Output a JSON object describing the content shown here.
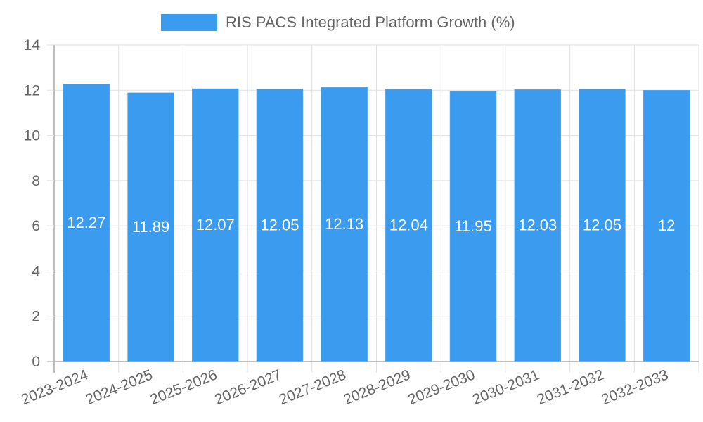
{
  "legend": {
    "label": "RIS PACS Integrated Platform Growth (%)",
    "color": "#3a9bef"
  },
  "chart_data": {
    "type": "bar",
    "title": "",
    "xlabel": "",
    "ylabel": "",
    "categories": [
      "2023-2024",
      "2024-2025",
      "2025-2026",
      "2026-2027",
      "2027-2028",
      "2028-2029",
      "2029-2030",
      "2030-2031",
      "2031-2032",
      "2032-2033"
    ],
    "series": [
      {
        "name": "RIS PACS Integrated Platform Growth (%)",
        "color": "#3a9bef",
        "values": [
          12.27,
          11.89,
          12.07,
          12.05,
          12.13,
          12.04,
          11.95,
          12.03,
          12.05,
          12
        ]
      }
    ],
    "ylim": [
      0,
      14
    ],
    "yticks": [
      0,
      2,
      4,
      6,
      8,
      10,
      12,
      14
    ],
    "grid": true,
    "legend_position": "top",
    "data_labels": true
  }
}
